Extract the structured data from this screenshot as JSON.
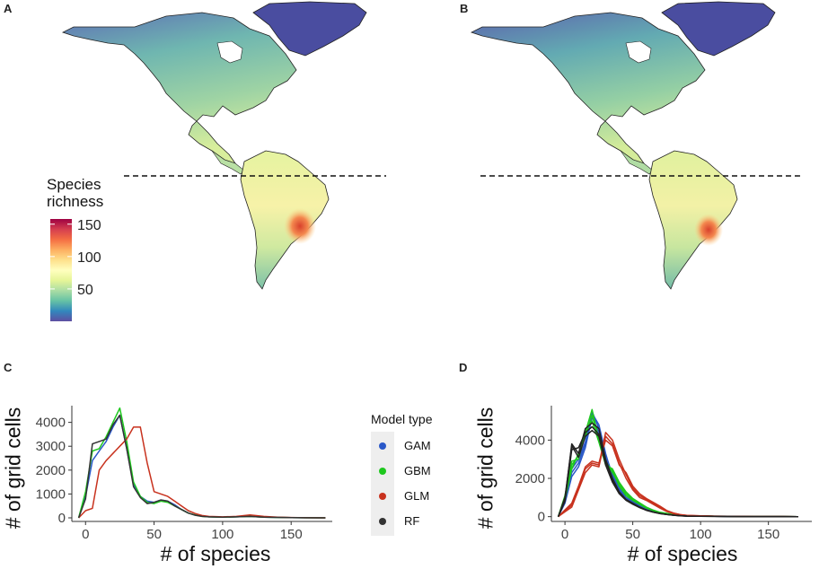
{
  "panels": {
    "a": "A",
    "b": "B",
    "c": "C",
    "d": "D"
  },
  "colorbar": {
    "title_line1": "Species",
    "title_line2": "richness",
    "ticks": [
      "150",
      "100",
      "50"
    ],
    "tick_values": [
      150,
      100,
      50
    ],
    "range": [
      0,
      158
    ],
    "colors": [
      "#5e4fa2",
      "#3288bd",
      "#66c2a5",
      "#abdda4",
      "#e6f598",
      "#ffffbf",
      "#fee08b",
      "#fdae61",
      "#f46d43",
      "#d53e4f",
      "#9e0142"
    ]
  },
  "legend": {
    "title": "Model type",
    "items": [
      {
        "label": "GAM",
        "color": "#2a58c8"
      },
      {
        "label": "GBM",
        "color": "#1ec81e"
      },
      {
        "label": "GLM",
        "color": "#c8321e"
      },
      {
        "label": "RF",
        "color": "#333333"
      }
    ]
  },
  "chart_data": [
    {
      "type": "line",
      "panel": "C",
      "xlabel": "# of species",
      "ylabel": "# of grid cells",
      "xlim": [
        -10,
        180
      ],
      "ylim": [
        -150,
        4700
      ],
      "xticks": [
        0,
        50,
        100,
        150
      ],
      "xtick_labels": [
        "0",
        "50",
        "100",
        "150"
      ],
      "yticks": [
        0,
        1000,
        2000,
        3000,
        4000
      ],
      "ytick_labels": [
        "0",
        "1000",
        "2000",
        "3000",
        "4000"
      ],
      "series": [
        {
          "name": "GAM",
          "color": "#2a58c8",
          "x": [
            -5,
            0,
            5,
            10,
            15,
            20,
            25,
            30,
            35,
            40,
            45,
            50,
            55,
            60,
            65,
            70,
            75,
            80,
            85,
            90,
            100,
            110,
            120,
            130,
            140,
            150,
            160,
            175
          ],
          "y": [
            0,
            900,
            2400,
            2800,
            3200,
            3800,
            4300,
            2900,
            1400,
            900,
            700,
            650,
            750,
            700,
            550,
            350,
            200,
            120,
            70,
            40,
            30,
            40,
            60,
            30,
            20,
            10,
            5,
            0
          ]
        },
        {
          "name": "GBM",
          "color": "#1ec81e",
          "x": [
            -5,
            0,
            5,
            10,
            15,
            20,
            25,
            30,
            35,
            40,
            45,
            50,
            55,
            60,
            65,
            70,
            75,
            80,
            85,
            90,
            100,
            110,
            120,
            130,
            140,
            150,
            160,
            175
          ],
          "y": [
            0,
            1100,
            2800,
            2900,
            3400,
            4000,
            4600,
            3200,
            1500,
            900,
            650,
            600,
            700,
            650,
            500,
            350,
            200,
            120,
            60,
            40,
            30,
            40,
            60,
            30,
            20,
            10,
            5,
            0
          ]
        },
        {
          "name": "GLM",
          "color": "#c8321e",
          "x": [
            -5,
            0,
            5,
            10,
            15,
            20,
            25,
            30,
            35,
            40,
            45,
            50,
            55,
            60,
            65,
            70,
            75,
            80,
            85,
            90,
            100,
            110,
            120,
            130,
            140,
            150,
            160,
            175
          ],
          "y": [
            0,
            300,
            400,
            2000,
            2400,
            2700,
            3000,
            3300,
            3800,
            3800,
            2300,
            1100,
            1000,
            900,
            700,
            500,
            300,
            180,
            100,
            60,
            40,
            60,
            120,
            60,
            30,
            15,
            5,
            0
          ]
        },
        {
          "name": "RF",
          "color": "#333333",
          "x": [
            -5,
            0,
            5,
            10,
            15,
            20,
            25,
            30,
            35,
            40,
            45,
            50,
            55,
            60,
            65,
            70,
            75,
            80,
            85,
            90,
            100,
            110,
            120,
            130,
            140,
            150,
            160,
            175
          ],
          "y": [
            0,
            800,
            3100,
            3200,
            3300,
            3900,
            4300,
            2900,
            1300,
            850,
            600,
            650,
            750,
            700,
            500,
            350,
            200,
            110,
            60,
            40,
            30,
            40,
            60,
            30,
            20,
            10,
            5,
            0
          ]
        }
      ]
    },
    {
      "type": "line",
      "panel": "D",
      "xlabel": "# of species",
      "ylabel": "# of grid cells",
      "xlim": [
        -10,
        182
      ],
      "ylim": [
        -250,
        5800
      ],
      "xticks": [
        0,
        50,
        100,
        150
      ],
      "xtick_labels": [
        "0",
        "50",
        "100",
        "150"
      ],
      "yticks": [
        0,
        2000,
        4000
      ],
      "ytick_labels": [
        "0",
        "2000",
        "4000"
      ],
      "x": [
        -5,
        0,
        5,
        10,
        15,
        20,
        25,
        30,
        35,
        40,
        45,
        50,
        55,
        60,
        65,
        70,
        75,
        80,
        85,
        90,
        100,
        110,
        120,
        130,
        140,
        150,
        160,
        172
      ],
      "series": [
        {
          "name": "GAM 1",
          "model": "GAM",
          "color": "#2a58c8",
          "y": [
            0,
            800,
            2300,
            2800,
            3800,
            5500,
            4600,
            3200,
            2200,
            1500,
            1000,
            800,
            600,
            400,
            300,
            200,
            150,
            100,
            60,
            40,
            30,
            20,
            15,
            10,
            5,
            3,
            2,
            0
          ]
        },
        {
          "name": "GAM 2",
          "model": "GAM",
          "color": "#2a58c8",
          "y": [
            0,
            700,
            2100,
            2600,
            3600,
            5200,
            4400,
            3000,
            2000,
            1400,
            950,
            750,
            560,
            380,
            280,
            190,
            140,
            90,
            55,
            35,
            25,
            18,
            12,
            8,
            4,
            2,
            1,
            0
          ]
        },
        {
          "name": "GAM 3",
          "model": "GAM",
          "color": "#2a58c8",
          "y": [
            0,
            900,
            2500,
            3000,
            3900,
            5400,
            4800,
            3300,
            2100,
            1450,
            980,
            780,
            590,
            390,
            290,
            195,
            145,
            95,
            58,
            38,
            28,
            19,
            14,
            9,
            4,
            2,
            1,
            0
          ]
        },
        {
          "name": "GBM 1",
          "model": "GBM",
          "color": "#1ec81e",
          "y": [
            0,
            1000,
            2700,
            3200,
            4400,
            5600,
            4000,
            2800,
            2400,
            1600,
            1100,
            850,
            650,
            450,
            320,
            210,
            150,
            100,
            60,
            40,
            30,
            20,
            15,
            10,
            5,
            3,
            2,
            0
          ]
        },
        {
          "name": "GBM 2",
          "model": "GBM",
          "color": "#1ec81e",
          "y": [
            0,
            900,
            2500,
            3300,
            4200,
            5300,
            4100,
            2900,
            2300,
            1700,
            1200,
            900,
            700,
            480,
            330,
            220,
            160,
            105,
            62,
            42,
            31,
            21,
            16,
            10,
            5,
            3,
            2,
            0
          ]
        },
        {
          "name": "GBM 3",
          "model": "GBM",
          "color": "#1ec81e",
          "y": [
            0,
            1100,
            2900,
            3000,
            4500,
            5000,
            3900,
            2700,
            2500,
            1800,
            1300,
            950,
            720,
            500,
            340,
            230,
            170,
            110,
            64,
            44,
            32,
            22,
            16,
            11,
            5,
            3,
            2,
            0
          ]
        },
        {
          "name": "GLM 1",
          "model": "GLM",
          "color": "#c8321e",
          "y": [
            0,
            300,
            600,
            1500,
            2500,
            2800,
            2700,
            4400,
            4000,
            3000,
            2200,
            1500,
            1100,
            900,
            700,
            500,
            300,
            180,
            100,
            60,
            40,
            25,
            18,
            10,
            5,
            3,
            2,
            0
          ]
        },
        {
          "name": "GLM 2",
          "model": "GLM",
          "color": "#c8321e",
          "y": [
            0,
            250,
            500,
            1400,
            2300,
            2700,
            2600,
            4200,
            3800,
            2800,
            2000,
            1400,
            1000,
            850,
            650,
            450,
            270,
            160,
            90,
            55,
            36,
            22,
            16,
            9,
            4,
            2,
            1,
            0
          ]
        },
        {
          "name": "GLM 3",
          "model": "GLM",
          "color": "#c8321e",
          "y": [
            0,
            350,
            700,
            1600,
            2600,
            2900,
            2800,
            4000,
            3700,
            2700,
            2300,
            1600,
            1200,
            950,
            750,
            550,
            320,
            190,
            105,
            62,
            42,
            26,
            19,
            11,
            5,
            3,
            2,
            0
          ]
        },
        {
          "name": "RF 1",
          "model": "RF",
          "color": "#222222",
          "y": [
            0,
            900,
            3800,
            3300,
            4600,
            4900,
            4600,
            3000,
            2000,
            1300,
            900,
            700,
            500,
            350,
            250,
            170,
            120,
            80,
            50,
            30,
            20,
            15,
            10,
            6,
            3,
            2,
            1,
            0
          ]
        },
        {
          "name": "RF 2",
          "model": "RF",
          "color": "#222222",
          "y": [
            0,
            800,
            3500,
            3600,
            4400,
            4700,
            4300,
            2900,
            1900,
            1250,
            870,
            680,
            480,
            340,
            240,
            165,
            115,
            78,
            48,
            29,
            19,
            14,
            9,
            5,
            3,
            2,
            1,
            0
          ]
        },
        {
          "name": "RF 3",
          "model": "RF",
          "color": "#222222",
          "y": [
            0,
            1000,
            3700,
            3100,
            4200,
            4500,
            4200,
            2700,
            1800,
            1200,
            850,
            650,
            470,
            330,
            235,
            160,
            110,
            75,
            46,
            28,
            18,
            13,
            9,
            5,
            3,
            2,
            1,
            0
          ]
        }
      ]
    }
  ]
}
